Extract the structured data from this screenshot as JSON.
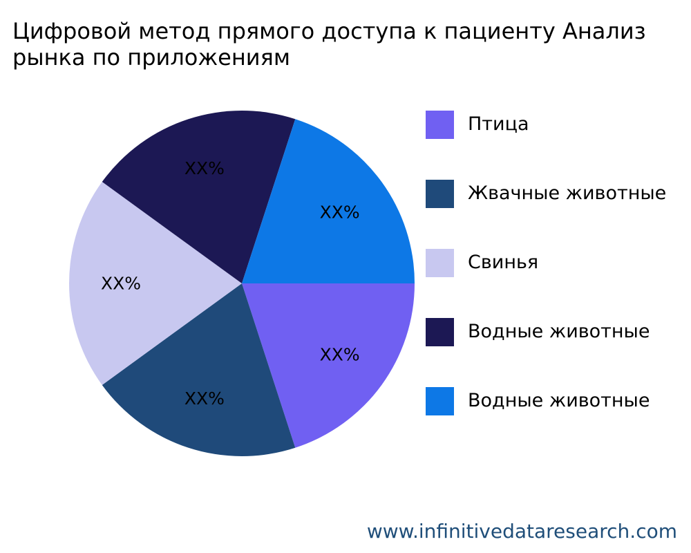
{
  "title": {
    "line1": "Цифровой метод прямого доступа к пациенту Анализ",
    "line2": "рынка по приложениям"
  },
  "chart_data": {
    "type": "pie",
    "categories": [
      "Птица",
      "Жвачные животные",
      "Свинья",
      "Водные животные",
      "Водные животные"
    ],
    "values": [
      20,
      20,
      20,
      20,
      20
    ],
    "data_labels": [
      "XX%",
      "XX%",
      "XX%",
      "XX%",
      "XX%"
    ],
    "colors": [
      "#7060f2",
      "#1f4a7a",
      "#c8c8f0",
      "#1c1854",
      "#0d78e6"
    ],
    "legend_position": "right",
    "start_angle_deg": 0,
    "direction": "clockwise"
  },
  "legend": [
    {
      "label": "Птица",
      "color": "#7060f2"
    },
    {
      "label": "Жвачные животные",
      "color": "#1f4a7a"
    },
    {
      "label": "Свинья",
      "color": "#c8c8f0"
    },
    {
      "label": "Водные животные",
      "color": "#1c1854"
    },
    {
      "label": "Водные животные",
      "color": "#0d78e6"
    }
  ],
  "source": "www.infinitivedataresearch.com"
}
